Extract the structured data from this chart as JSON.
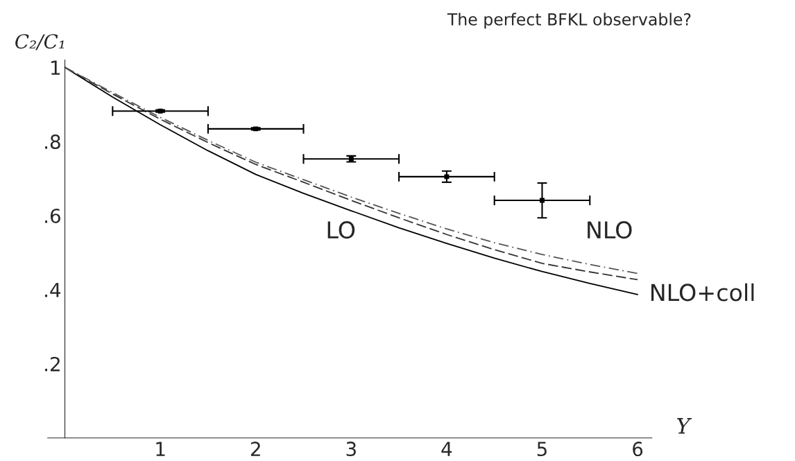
{
  "chart_data": {
    "type": "line",
    "title": "The perfect BFKL observable?",
    "xlabel": "Y",
    "ylabel": "C₂/C₁",
    "x": [
      0,
      0.5,
      1,
      1.5,
      2,
      2.5,
      3,
      3.5,
      4,
      4.5,
      5,
      5.5,
      6
    ],
    "series": [
      {
        "color": "#000000",
        "line_style": "solid",
        "values": [
          1,
          0.92,
          0.845,
          0.775,
          0.711,
          0.66,
          0.613,
          0.567,
          0.525,
          0.485,
          0.449,
          0.417,
          0.387
        ]
      },
      {
        "color": "#333333",
        "line_style": "dashed",
        "values": [
          1,
          0.928,
          0.86,
          0.797,
          0.738,
          0.69,
          0.641,
          0.594,
          0.549,
          0.508,
          0.471,
          0.448,
          0.427
        ]
      },
      {
        "color": "#555555",
        "line_style": "dashdot",
        "values": [
          1,
          0.932,
          0.865,
          0.803,
          0.744,
          0.697,
          0.65,
          0.606,
          0.564,
          0.527,
          0.495,
          0.468,
          0.444
        ]
      },
      {
        "type": "scatter",
        "color": "#000000",
        "marker": "square",
        "x": [
          1,
          2,
          3,
          4,
          5
        ],
        "values": [
          0.882,
          0.834,
          0.753,
          0.705,
          0.641
        ],
        "errors": [
          0.003,
          0.003,
          0.008,
          0.015,
          0.047
        ],
        "xerrors": [
          0.5,
          0.5,
          0.5,
          0.5,
          0.5
        ]
      }
    ],
    "xlim": [
      -0.18,
      6.15
    ],
    "ylim": [
      0,
      1.02
    ],
    "xticks": [
      1,
      2,
      3,
      4,
      5,
      6
    ],
    "yticks": [
      {
        "value": 0.2,
        "label": ".2"
      },
      {
        "value": 0.4,
        "label": ".4"
      },
      {
        "value": 0.6,
        "label": ".6"
      },
      {
        "value": 0.8,
        "label": ".8"
      },
      1
    ],
    "grid": false,
    "legend": false,
    "annotations": [
      "LO",
      "NLO",
      {
        "text": "NLO+coll",
        "x": 6,
        "y": 0.387
      }
    ]
  }
}
